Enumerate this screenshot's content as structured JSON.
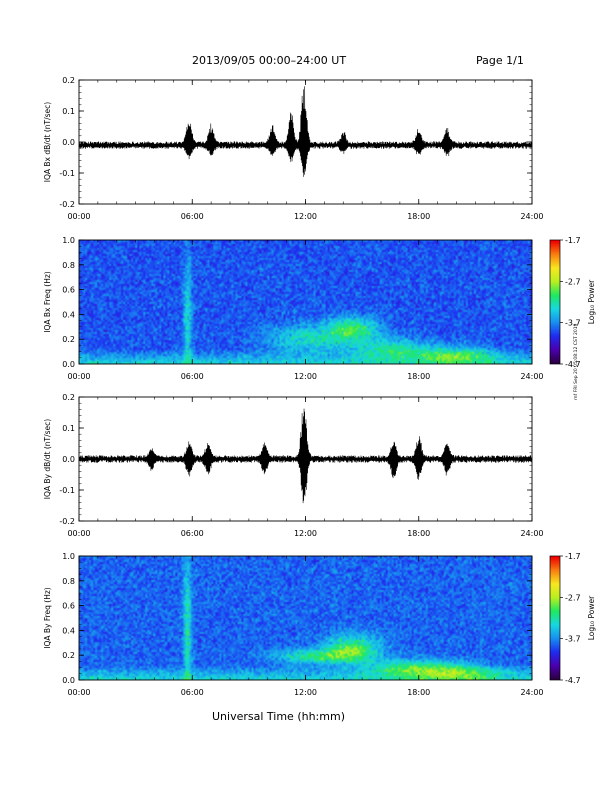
{
  "header": {
    "title": "2013/09/05  00:00–24:00 UT",
    "page": "Page 1/1"
  },
  "footer": {
    "xaxis_caption": "Universal Time (hh:mm)",
    "stamp": "rnf FRI Sep 20 05:08:12 CST 2019"
  },
  "colors": {
    "trace": "#000000",
    "colormap": [
      "#2b0040",
      "#4b00b0",
      "#1f2cf0",
      "#1890f0",
      "#18d8e0",
      "#20e860",
      "#b8f020",
      "#f8e820",
      "#f88010",
      "#f00000"
    ]
  },
  "chart_data": [
    {
      "type": "line",
      "title": "",
      "ylabel": "IQA Bx dB/dt (nT/sec)",
      "xlabel": "",
      "xlim": [
        "00:00",
        "24:00"
      ],
      "ylim": [
        -0.2,
        0.2
      ],
      "x_ticks": [
        "00:00",
        "06:00",
        "12:00",
        "18:00",
        "24:00"
      ],
      "y_ticks": [
        "-0.2",
        "-0.1",
        "0.0",
        "0.1",
        "0.2"
      ],
      "grid": false,
      "baseline": -0.01,
      "noise_amplitude": 0.012,
      "bursts": [
        {
          "time": "05:50",
          "peak_max": 0.08,
          "peak_min": -0.05
        },
        {
          "time": "07:00",
          "peak_max": 0.05,
          "peak_min": -0.04
        },
        {
          "time": "10:15",
          "peak_max": 0.05,
          "peak_min": -0.04
        },
        {
          "time": "11:15",
          "peak_max": 0.09,
          "peak_min": -0.06
        },
        {
          "time": "11:55",
          "peak_max": 0.19,
          "peak_min": -0.12
        },
        {
          "time": "14:00",
          "peak_max": 0.03,
          "peak_min": -0.03
        },
        {
          "time": "18:00",
          "peak_max": 0.04,
          "peak_min": -0.04
        },
        {
          "time": "19:30",
          "peak_max": 0.04,
          "peak_min": -0.04
        }
      ]
    },
    {
      "type": "heatmap",
      "title": "",
      "ylabel": "IQA Bx Freq (Hz)",
      "xlabel": "",
      "xlim": [
        "00:00",
        "24:00"
      ],
      "ylim": [
        0.0,
        1.0
      ],
      "x_ticks": [
        "00:00",
        "06:00",
        "12:00",
        "18:00",
        "24:00"
      ],
      "y_ticks": [
        "0.0",
        "0.2",
        "0.4",
        "0.6",
        "0.8",
        "1.0"
      ],
      "colorbar": {
        "label": "Log₁₀ Power",
        "min": -4.7,
        "max": -1.7,
        "ticks": [
          "-1.7",
          "-2.7",
          "-3.7",
          "-4.7"
        ]
      },
      "background_level": -3.9,
      "features": [
        {
          "time": "05:45",
          "freq": 0.35,
          "width_hours": 0.15,
          "width_hz": 0.35,
          "level": -3.2
        },
        {
          "time": "12:00",
          "freq": 0.2,
          "width_hours": 1.5,
          "width_hz": 0.08,
          "level": -3.2
        },
        {
          "time": "14:30",
          "freq": 0.28,
          "width_hours": 1.0,
          "width_hz": 0.07,
          "level": -2.9
        },
        {
          "time": "16:30",
          "freq": 0.12,
          "width_hours": 1.5,
          "width_hz": 0.06,
          "level": -3.1
        },
        {
          "time": "20:00",
          "freq": 0.07,
          "width_hours": 1.5,
          "width_hz": 0.05,
          "level": -3.0
        }
      ]
    },
    {
      "type": "line",
      "title": "",
      "ylabel": "IQA By dB/dt (nT/sec)",
      "xlabel": "",
      "xlim": [
        "00:00",
        "24:00"
      ],
      "ylim": [
        -0.2,
        0.2
      ],
      "x_ticks": [
        "00:00",
        "06:00",
        "12:00",
        "18:00",
        "24:00"
      ],
      "y_ticks": [
        "-0.2",
        "-0.1",
        "0.0",
        "0.1",
        "0.2"
      ],
      "grid": false,
      "baseline": 0.0,
      "noise_amplitude": 0.012,
      "bursts": [
        {
          "time": "03:50",
          "peak_max": 0.03,
          "peak_min": -0.03
        },
        {
          "time": "05:50",
          "peak_max": 0.05,
          "peak_min": -0.05
        },
        {
          "time": "06:50",
          "peak_max": 0.05,
          "peak_min": -0.05
        },
        {
          "time": "09:50",
          "peak_max": 0.05,
          "peak_min": -0.05
        },
        {
          "time": "11:55",
          "peak_max": 0.2,
          "peak_min": -0.16
        },
        {
          "time": "16:40",
          "peak_max": 0.06,
          "peak_min": -0.06
        },
        {
          "time": "18:00",
          "peak_max": 0.07,
          "peak_min": -0.07
        },
        {
          "time": "19:30",
          "peak_max": 0.05,
          "peak_min": -0.05
        }
      ]
    },
    {
      "type": "heatmap",
      "title": "",
      "ylabel": "IQA By Freq (Hz)",
      "xlabel": "",
      "xlim": [
        "00:00",
        "24:00"
      ],
      "ylim": [
        0.0,
        1.0
      ],
      "x_ticks": [
        "00:00",
        "06:00",
        "12:00",
        "18:00",
        "24:00"
      ],
      "y_ticks": [
        "0.0",
        "0.2",
        "0.4",
        "0.6",
        "0.8",
        "1.0"
      ],
      "colorbar": {
        "label": "Log₁₀ Power",
        "min": -4.7,
        "max": -1.7,
        "ticks": [
          "-1.7",
          "-2.7",
          "-3.7",
          "-4.7"
        ]
      },
      "background_level": -3.85,
      "features": [
        {
          "time": "05:45",
          "freq": 0.4,
          "width_hours": 0.15,
          "width_hz": 0.4,
          "level": -3.1
        },
        {
          "time": "12:30",
          "freq": 0.19,
          "width_hours": 1.5,
          "width_hz": 0.04,
          "level": -3.0
        },
        {
          "time": "14:30",
          "freq": 0.25,
          "width_hours": 1.0,
          "width_hz": 0.08,
          "level": -2.8
        },
        {
          "time": "17:30",
          "freq": 0.1,
          "width_hours": 1.5,
          "width_hz": 0.05,
          "level": -3.0
        },
        {
          "time": "20:00",
          "freq": 0.06,
          "width_hours": 1.5,
          "width_hz": 0.05,
          "level": -3.0
        }
      ]
    }
  ]
}
